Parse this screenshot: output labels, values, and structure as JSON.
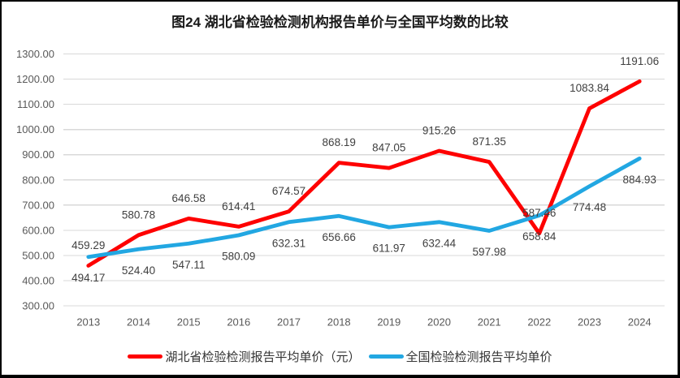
{
  "window": {
    "title": "图24 湖北省检验检测机构报告单价与全国平均数的比较"
  },
  "chart_data": {
    "type": "line",
    "title": "图24 湖北省检验检测机构报告单价与全国平均数的比较",
    "categories": [
      "2013",
      "2014",
      "2015",
      "2016",
      "2017",
      "2018",
      "2019",
      "2020",
      "2021",
      "2022",
      "2023",
      "2024"
    ],
    "series": [
      {
        "name": "湖北省检验检测报告平均单价（元）",
        "color": "#fe0000",
        "label_position": "above",
        "values": [
          459.29,
          580.78,
          646.58,
          614.41,
          674.57,
          868.19,
          847.05,
          915.26,
          871.35,
          587.46,
          1083.84,
          1191.06
        ]
      },
      {
        "name": "全国检验检测报告平均单价",
        "color": "#22a7e2",
        "label_position": "below",
        "values": [
          494.17,
          524.4,
          547.11,
          580.09,
          632.31,
          656.66,
          611.97,
          632.44,
          597.98,
          658.84,
          774.48,
          884.93
        ]
      }
    ],
    "ylim": [
      300,
      1300
    ],
    "ytick_step": 100,
    "ytick_labels": [
      "300.00",
      "400.00",
      "500.00",
      "600.00",
      "700.00",
      "800.00",
      "900.00",
      "1000.00",
      "1100.00",
      "1200.00",
      "1300.00"
    ],
    "grid": true,
    "data_labels": true,
    "decimals": 2,
    "legend_position": "bottom"
  },
  "colors": {
    "gridline": "#d9d9d9",
    "axis_text": "#595959",
    "data_label_text": "#404040",
    "title_text": "#1a1a1a",
    "legend_text": "#333333",
    "frame": "#000000",
    "background": "#ffffff"
  }
}
